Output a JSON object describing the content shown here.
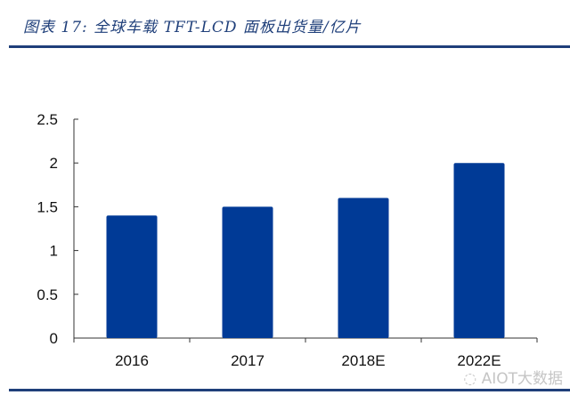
{
  "title": "图表 17:  全球车载 TFT-LCD 面板出货量/亿片",
  "watermark": "AIOT大数据",
  "chart_data": {
    "type": "bar",
    "title": "图表 17:  全球车载 TFT-LCD 面板出货量/亿片",
    "categories": [
      "2016",
      "2017",
      "2018E",
      "2022E"
    ],
    "values": [
      1.4,
      1.5,
      1.6,
      2.0
    ],
    "ylim": [
      0,
      2.5
    ],
    "yticks": [
      "0",
      "0.5",
      "1",
      "1.5",
      "2",
      "2.5"
    ],
    "xlabel": "",
    "ylabel": "",
    "grid": false,
    "bar_color": "#003a96",
    "rule_color": "#1f3f7a"
  }
}
